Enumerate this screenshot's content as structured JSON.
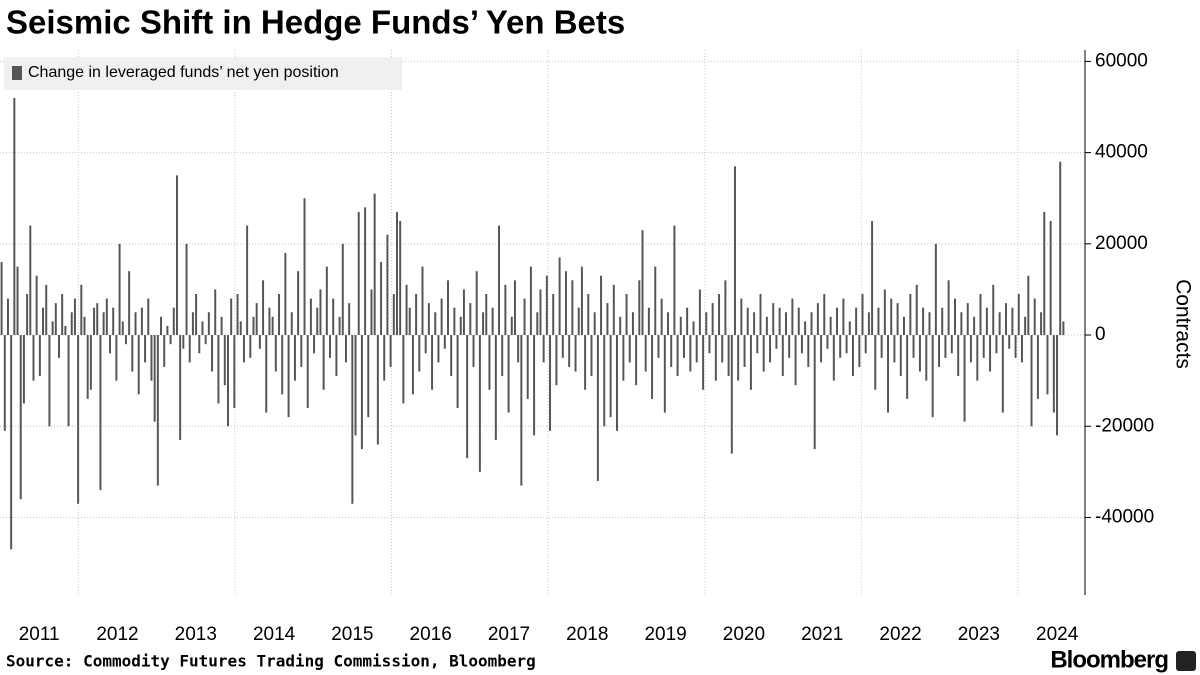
{
  "chart_data": {
    "type": "bar",
    "title": "Seismic Shift in Hedge Funds’ Yen Bets",
    "source": "Source: Commodity Futures Trading Commission, Bloomberg",
    "brand": "Bloomberg",
    "ylabel": "Contracts",
    "series": [
      {
        "name": "Change in leveraged funds’ net yen position",
        "color": "#555555",
        "values": [
          16000,
          -21000,
          8000,
          -47000,
          52000,
          15000,
          -36000,
          -15000,
          9000,
          24000,
          -10000,
          13000,
          -9000,
          6000,
          11000,
          -20000,
          3000,
          7000,
          -5000,
          9000,
          2000,
          -20000,
          5000,
          8000,
          -37000,
          11000,
          4000,
          -14000,
          -12000,
          6000,
          7000,
          -34000,
          5000,
          8000,
          -4000,
          6000,
          -10000,
          20000,
          3000,
          -2000,
          14000,
          -8000,
          5000,
          -13000,
          6000,
          -6000,
          8000,
          -10000,
          -19000,
          -33000,
          4000,
          -7000,
          2000,
          -2000,
          6000,
          35000,
          -23000,
          -3000,
          20000,
          -6000,
          5000,
          9000,
          -4000,
          3000,
          -2000,
          5000,
          -8000,
          10000,
          -15000,
          4000,
          -11000,
          -20000,
          8000,
          -16000,
          9000,
          3000,
          -6000,
          24000,
          -5000,
          4000,
          7000,
          -3000,
          12000,
          -17000,
          6000,
          4000,
          -8000,
          9000,
          -13000,
          18000,
          -18000,
          5000,
          -10000,
          14000,
          -7000,
          30000,
          -16000,
          8000,
          -4000,
          6000,
          10000,
          -12000,
          15000,
          -5000,
          8000,
          -9000,
          4000,
          20000,
          -6000,
          7000,
          -37000,
          -22000,
          27000,
          -25000,
          28000,
          -18000,
          10000,
          31000,
          -24000,
          16000,
          -10000,
          22000,
          -7000,
          9000,
          27000,
          25000,
          -15000,
          11000,
          6000,
          -13000,
          9000,
          -8000,
          15000,
          -4000,
          7000,
          -12000,
          5000,
          -6000,
          8000,
          -3000,
          12000,
          -9000,
          6000,
          -16000,
          4000,
          10000,
          -27000,
          7000,
          -7000,
          14000,
          -30000,
          5000,
          9000,
          -12000,
          6000,
          -23000,
          24000,
          -9000,
          11000,
          -17000,
          4000,
          12000,
          -6000,
          -33000,
          8000,
          -14000,
          15000,
          -22000,
          5000,
          10000,
          -6000,
          13000,
          -21000,
          9000,
          -11000,
          17000,
          -5000,
          14000,
          -7000,
          12000,
          -8000,
          6000,
          15000,
          -12000,
          9000,
          -9000,
          5000,
          -32000,
          13000,
          -20000,
          7000,
          -18000,
          11000,
          -21000,
          4000,
          -10000,
          9000,
          -6000,
          5000,
          -11000,
          12000,
          23000,
          -8000,
          6000,
          -14000,
          15000,
          -5000,
          8000,
          -17000,
          5000,
          -7000,
          24000,
          -9000,
          4000,
          -5000,
          6000,
          -8000,
          3000,
          -6000,
          10000,
          -12000,
          5000,
          -4000,
          7000,
          -10000,
          9000,
          -6000,
          12000,
          -9000,
          -26000,
          37000,
          -10000,
          8000,
          -7000,
          6000,
          -12000,
          5000,
          -4000,
          9000,
          -8000,
          4000,
          -6000,
          7000,
          -3000,
          6000,
          -9000,
          5000,
          -5000,
          8000,
          -11000,
          6000,
          -4000,
          3000,
          -7000,
          5000,
          -25000,
          7000,
          -6000,
          9000,
          -3000,
          4000,
          -10000,
          6000,
          -5000,
          8000,
          -4000,
          3000,
          -9000,
          6000,
          -7000,
          9000,
          -4000,
          5000,
          25000,
          -12000,
          6000,
          -5000,
          10000,
          -17000,
          8000,
          -6000,
          7000,
          -9000,
          4000,
          -14000,
          9000,
          -5000,
          11000,
          -8000,
          6000,
          -10000,
          5000,
          -18000,
          20000,
          -7000,
          6000,
          -5000,
          12000,
          -4000,
          8000,
          -9000,
          5000,
          -19000,
          7000,
          -6000,
          4000,
          -10000,
          9000,
          -5000,
          6000,
          -8000,
          11000,
          -4000,
          5000,
          -17000,
          7000,
          -3000,
          6000,
          -5000,
          9000,
          -6000,
          4000,
          13000,
          -20000,
          8000,
          -14000,
          5000,
          27000,
          -13000,
          25000,
          -17000,
          -22000,
          38000,
          3000
        ]
      }
    ],
    "xlim": [
      2011,
      2024.6
    ],
    "xticks": [
      {
        "value": 2011.5,
        "label": "2011"
      },
      {
        "value": 2012.5,
        "label": "2012"
      },
      {
        "value": 2013.5,
        "label": "2013"
      },
      {
        "value": 2014.5,
        "label": "2014"
      },
      {
        "value": 2015.5,
        "label": "2015"
      },
      {
        "value": 2016.5,
        "label": "2016"
      },
      {
        "value": 2017.5,
        "label": "2017"
      },
      {
        "value": 2018.5,
        "label": "2018"
      },
      {
        "value": 2019.5,
        "label": "2019"
      },
      {
        "value": 2020.5,
        "label": "2020"
      },
      {
        "value": 2021.5,
        "label": "2021"
      },
      {
        "value": 2022.5,
        "label": "2022"
      },
      {
        "value": 2023.5,
        "label": "2023"
      },
      {
        "value": 2024.5,
        "label": "2024"
      }
    ],
    "xgrid": [
      2012,
      2014,
      2016,
      2018,
      2020,
      2022,
      2024
    ],
    "ylim": [
      -57000,
      62500
    ],
    "yticks": [
      60000,
      40000,
      20000,
      0,
      -20000,
      -40000
    ],
    "grid": true,
    "legend": "top-left"
  }
}
